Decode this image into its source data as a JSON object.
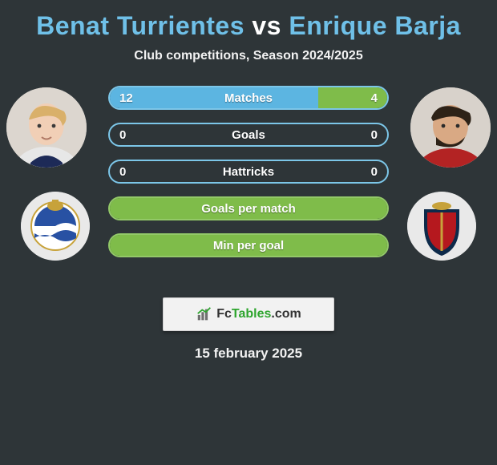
{
  "title": {
    "p1": "Benat Turrientes",
    "vs": "vs",
    "p2": "Enrique Barja"
  },
  "subtitle": "Club competitions, Season 2024/2025",
  "colors": {
    "p1": "#5cb5e1",
    "p2": "#7fbc4a",
    "border_p1": "#7cc6e8",
    "border_p2": "#93c968",
    "bg": "#2e3538"
  },
  "bars": [
    {
      "label": "Matches",
      "left": "12",
      "right": "4",
      "lfrac": 0.75,
      "rfrac": 0.25,
      "showVals": true
    },
    {
      "label": "Goals",
      "left": "0",
      "right": "0",
      "lfrac": 0.0,
      "rfrac": 0.0,
      "showVals": true
    },
    {
      "label": "Hattricks",
      "left": "0",
      "right": "0",
      "lfrac": 0.0,
      "rfrac": 0.0,
      "showVals": true
    },
    {
      "label": "Goals per match",
      "left": "",
      "right": "",
      "lfrac": 0.5,
      "rfrac": 0.5,
      "showVals": false
    },
    {
      "label": "Min per goal",
      "left": "",
      "right": "",
      "lfrac": 0.5,
      "rfrac": 0.5,
      "showVals": false
    }
  ],
  "brand": {
    "pre": "Fc",
    "suf": "Tables",
    "tld": ".com"
  },
  "date": "15 february 2025"
}
